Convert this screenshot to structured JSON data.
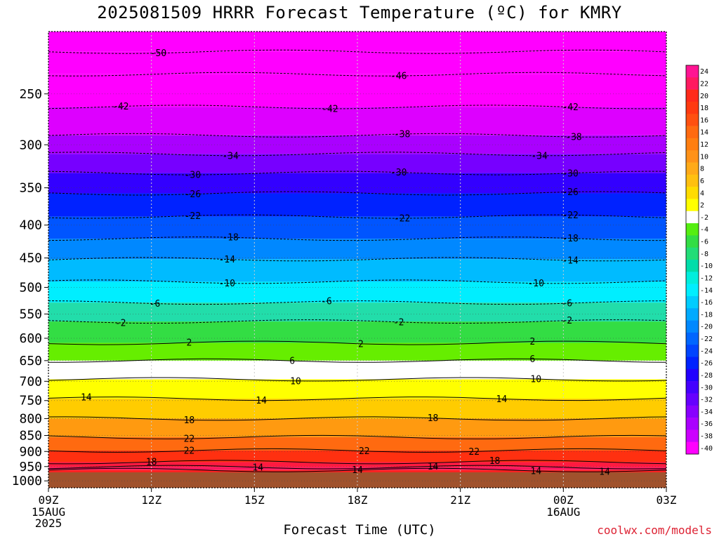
{
  "chart_data": {
    "type": "heatmap",
    "title": "2025081509 HRRR Forecast Temperature (ºC) for KMRY",
    "xlabel": "Forecast Time (UTC)",
    "ylabel": "",
    "credit": "coolwx.com/models",
    "x_ticks": [
      {
        "t": 0,
        "label": "09Z",
        "sub": [
          "15AUG",
          "2025"
        ]
      },
      {
        "t": 3,
        "label": "12Z",
        "sub": []
      },
      {
        "t": 6,
        "label": "15Z",
        "sub": []
      },
      {
        "t": 9,
        "label": "18Z",
        "sub": []
      },
      {
        "t": 12,
        "label": "21Z",
        "sub": []
      },
      {
        "t": 15,
        "label": "00Z",
        "sub": [
          "16AUG"
        ]
      },
      {
        "t": 18,
        "label": "03Z",
        "sub": []
      }
    ],
    "y_ticks": [
      250,
      300,
      350,
      400,
      450,
      500,
      550,
      600,
      650,
      700,
      750,
      800,
      850,
      900,
      950,
      1000
    ],
    "x_range": [
      "2025-08-15 09Z",
      "2025-08-16 03Z"
    ],
    "y_range_hpa": [
      200,
      1025
    ],
    "colorbar_labels": [
      "24",
      "22",
      "20",
      "18",
      "16",
      "14",
      "12",
      "10",
      "8",
      "6",
      "4",
      "2",
      "-2",
      "-4",
      "-6",
      "-8",
      "-10",
      "-12",
      "-14",
      "-16",
      "-18",
      "-20",
      "-22",
      "-24",
      "-26",
      "-28",
      "-30",
      "-32",
      "-34",
      "-36",
      "-38",
      "-40"
    ],
    "colorbar_colors": [
      "#ff1493",
      "#ff1a60",
      "#ff2a1a",
      "#ff3a10",
      "#ff5010",
      "#ff6a10",
      "#ff7e10",
      "#ff9218",
      "#ffaa18",
      "#ffc010",
      "#ffdc00",
      "#ffff00",
      "#ffffff",
      "#55ee11",
      "#33dd44",
      "#22dd77",
      "#00ddaa",
      "#00eedd",
      "#00eeff",
      "#00ccff",
      "#00aaff",
      "#0088ff",
      "#0066ff",
      "#0044ff",
      "#0022ff",
      "#2200ff",
      "#4400ff",
      "#6600ff",
      "#8800ff",
      "#aa00ff",
      "#cc00ff",
      "#ff00ff"
    ],
    "series": [
      {
        "pressure": 215,
        "label": "-50",
        "label_x": [
          3.2
        ]
      },
      {
        "pressure": 233,
        "label": "-46",
        "label_x": [
          10.2
        ]
      },
      {
        "pressure": 262,
        "label": "-42",
        "label_x": [
          2.1,
          8.2,
          15.2
        ]
      },
      {
        "pressure": 290,
        "label": "-38",
        "label_x": [
          10.3,
          15.3
        ]
      },
      {
        "pressure": 310,
        "label": "-34",
        "label_x": [
          5.3,
          14.3
        ]
      },
      {
        "pressure": 332,
        "label": "-30",
        "label_x": [
          4.2,
          10.2,
          15.2
        ]
      },
      {
        "pressure": 357,
        "label": "-26",
        "label_x": [
          4.2,
          15.2
        ]
      },
      {
        "pressure": 388,
        "label": "-22",
        "label_x": [
          4.2,
          10.3,
          15.2
        ]
      },
      {
        "pressure": 420,
        "label": "-18",
        "label_x": [
          5.3,
          15.2
        ]
      },
      {
        "pressure": 452,
        "label": "-14",
        "label_x": [
          5.2,
          15.2
        ]
      },
      {
        "pressure": 490,
        "label": "-10",
        "label_x": [
          5.2,
          14.2
        ]
      },
      {
        "pressure": 528,
        "label": "-6",
        "label_x": [
          3.1,
          8.1,
          15.1
        ]
      },
      {
        "pressure": 565,
        "label": "-2",
        "label_x": [
          2.1,
          10.2,
          15.1
        ]
      },
      {
        "pressure": 610,
        "label": "2",
        "label_x": [
          4.1,
          9.1,
          14.1
        ]
      },
      {
        "pressure": 650,
        "label": "6",
        "label_x": [
          7.1,
          14.1
        ]
      },
      {
        "pressure": 695,
        "label": "10",
        "label_x": [
          7.2,
          14.2
        ]
      },
      {
        "pressure": 745,
        "label": "14",
        "label_x": [
          1.1,
          6.2,
          13.2
        ]
      },
      {
        "pressure": 800,
        "label": "18",
        "label_x": [
          4.1,
          11.2
        ]
      },
      {
        "pressure": 855,
        "label": "22",
        "label_x": [
          4.1
        ]
      },
      {
        "pressure": 897,
        "label": "22",
        "label_x": [
          4.1,
          9.2,
          12.4
        ]
      },
      {
        "pressure": 935,
        "label": "18",
        "label_x": [
          3.0,
          13.0
        ]
      },
      {
        "pressure": 952,
        "label": "14",
        "label_x": [
          6.1,
          11.2
        ]
      },
      {
        "pressure": 962,
        "label": "14",
        "label_x": [
          9.0,
          14.2,
          16.2
        ]
      }
    ]
  }
}
